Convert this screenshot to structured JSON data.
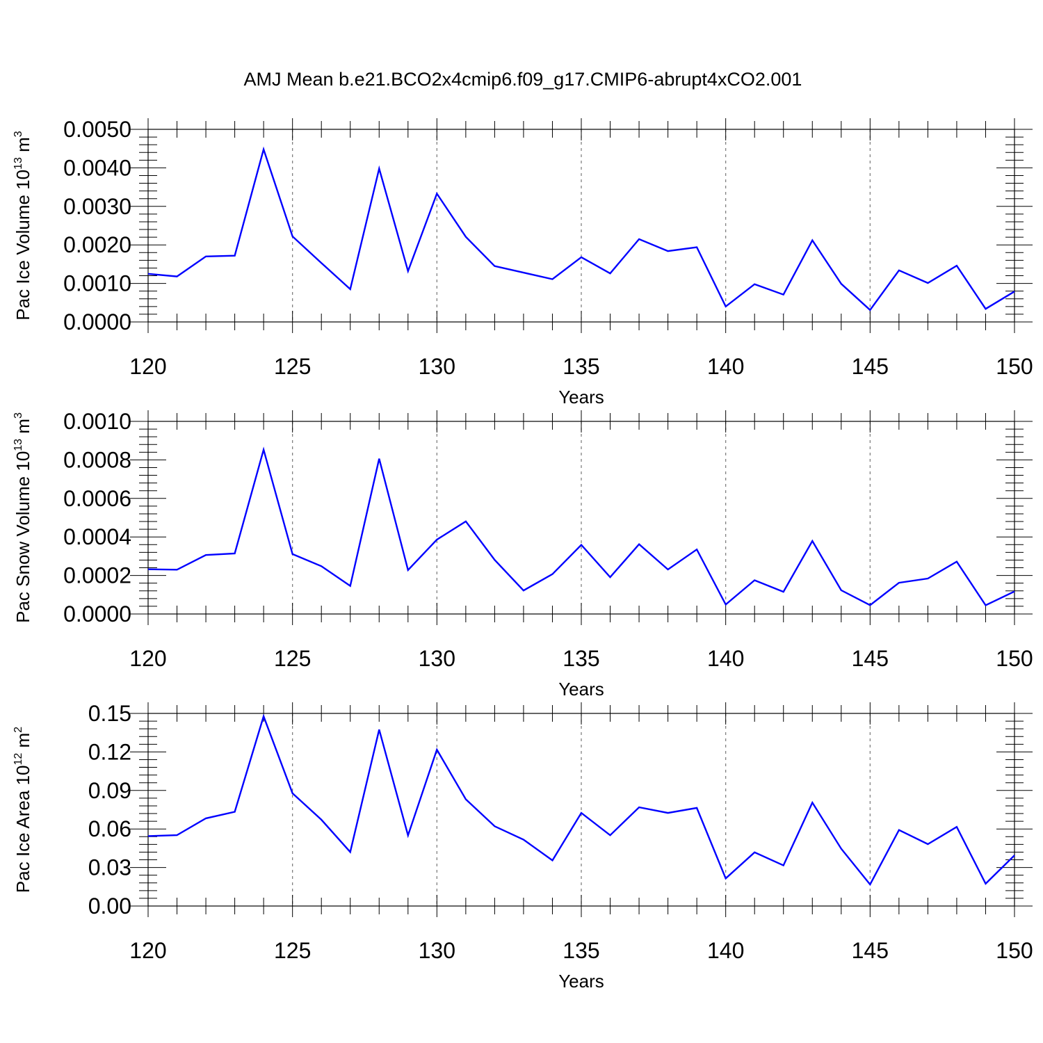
{
  "title": "AMJ Mean b.e21.BCO2x4cmip6.f09_g17.CMIP6-abrupt4xCO2.001",
  "colors": {
    "line": "#0000ff",
    "grid": "#777777",
    "axes": "#000000"
  },
  "chart_data": [
    {
      "type": "line",
      "xlabel": "Years",
      "ylabel": {
        "text": "Pac Ice Volume 10",
        "sup": "13",
        "unit": " m",
        "unit_sup": "3"
      },
      "xlim": [
        120,
        150
      ],
      "ylim": [
        0,
        0.005
      ],
      "x_ticks": [
        120,
        125,
        130,
        135,
        140,
        145,
        150
      ],
      "x_tick_labels": [
        "120",
        "125",
        "130",
        "135",
        "140",
        "145",
        "150"
      ],
      "y_ticks": [
        0,
        0.001,
        0.002,
        0.003,
        0.004,
        0.005
      ],
      "y_tick_labels": [
        "0.0000",
        "0.0010",
        "0.0020",
        "0.0030",
        "0.0040",
        "0.0050"
      ],
      "grid": "dashed vertical lines at major x ticks",
      "x": [
        120,
        121,
        122,
        123,
        124,
        125,
        126,
        127,
        128,
        129,
        130,
        131,
        132,
        133,
        134,
        135,
        136,
        137,
        138,
        139,
        140,
        141,
        142,
        143,
        144,
        145,
        146,
        147,
        148,
        149,
        150
      ],
      "values": [
        0.00125,
        0.00118,
        0.0017,
        0.00172,
        0.00448,
        0.00222,
        0.00153,
        0.00085,
        0.00398,
        0.00132,
        0.00333,
        0.00221,
        0.00145,
        0.00128,
        0.00111,
        0.00168,
        0.00126,
        0.00215,
        0.00184,
        0.00194,
        0.0004,
        0.00098,
        0.00071,
        0.00212,
        0.00099,
        0.00031,
        0.00134,
        0.00101,
        0.00146,
        0.00034,
        0.00079
      ]
    },
    {
      "type": "line",
      "xlabel": "Years",
      "ylabel": {
        "text": "Pac Snow Volume 10",
        "sup": "13",
        "unit": " m",
        "unit_sup": "3"
      },
      "xlim": [
        120,
        150
      ],
      "ylim": [
        0,
        0.001
      ],
      "x_ticks": [
        120,
        125,
        130,
        135,
        140,
        145,
        150
      ],
      "x_tick_labels": [
        "120",
        "125",
        "130",
        "135",
        "140",
        "145",
        "150"
      ],
      "y_ticks": [
        0,
        0.0002,
        0.0004,
        0.0006,
        0.0008,
        0.001
      ],
      "y_tick_labels": [
        "0.0000",
        "0.0002",
        "0.0004",
        "0.0006",
        "0.0008",
        "0.0010"
      ],
      "grid": "dashed vertical lines at major x ticks",
      "x": [
        120,
        121,
        122,
        123,
        124,
        125,
        126,
        127,
        128,
        129,
        130,
        131,
        132,
        133,
        134,
        135,
        136,
        137,
        138,
        139,
        140,
        141,
        142,
        143,
        144,
        145,
        146,
        147,
        148,
        149,
        150
      ],
      "values": [
        0.000232,
        0.00023,
        0.000306,
        0.000314,
        0.000853,
        0.000311,
        0.000248,
        0.000146,
        0.000806,
        0.000228,
        0.000386,
        0.000481,
        0.000281,
        0.000122,
        0.000207,
        0.000359,
        0.000191,
        0.000362,
        0.000231,
        0.000335,
        4.9e-05,
        0.000175,
        0.000115,
        0.000379,
        0.000123,
        4.6e-05,
        0.000162,
        0.000184,
        0.000272,
        4.5e-05,
        0.000117
      ]
    },
    {
      "type": "line",
      "xlabel": "Years",
      "ylabel": {
        "text": "Pac Ice Area 10",
        "sup": "12",
        "unit": " m",
        "unit_sup": "2"
      },
      "xlim": [
        120,
        150
      ],
      "ylim": [
        0,
        0.15
      ],
      "x_ticks": [
        120,
        125,
        130,
        135,
        140,
        145,
        150
      ],
      "x_tick_labels": [
        "120",
        "125",
        "130",
        "135",
        "140",
        "145",
        "150"
      ],
      "y_ticks": [
        0,
        0.03,
        0.06,
        0.09,
        0.12,
        0.15
      ],
      "y_tick_labels": [
        "0.00",
        "0.03",
        "0.06",
        "0.09",
        "0.12",
        "0.15"
      ],
      "grid": "dashed vertical lines at major x ticks",
      "x": [
        120,
        121,
        122,
        123,
        124,
        125,
        126,
        127,
        128,
        129,
        130,
        131,
        132,
        133,
        134,
        135,
        136,
        137,
        138,
        139,
        140,
        141,
        142,
        143,
        144,
        145,
        146,
        147,
        148,
        149,
        150
      ],
      "values": [
        0.0545,
        0.0552,
        0.0683,
        0.0734,
        0.1478,
        0.0878,
        0.0672,
        0.0421,
        0.1374,
        0.055,
        0.1218,
        0.0831,
        0.0621,
        0.0517,
        0.0355,
        0.0725,
        0.0551,
        0.0769,
        0.0725,
        0.0764,
        0.0215,
        0.0418,
        0.0316,
        0.0805,
        0.0446,
        0.0168,
        0.0592,
        0.0482,
        0.0616,
        0.0174,
        0.0395
      ]
    }
  ]
}
